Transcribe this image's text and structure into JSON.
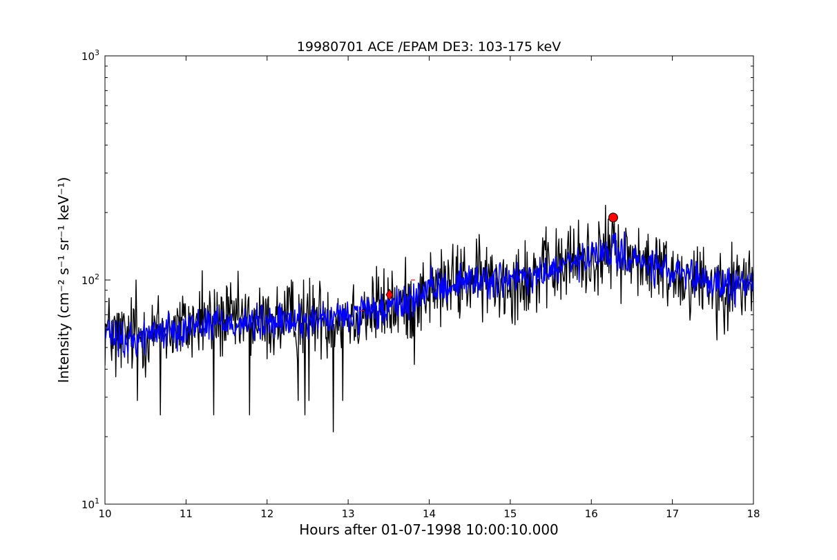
{
  "chart_data": {
    "type": "line",
    "title": "19980701 ACE /EPAM DE3: 103-175 keV",
    "xlabel": "Hours after 01-07-1998 10:00:10.000",
    "ylabel": "Intensity (cm⁻² s⁻¹ sr⁻¹ keV⁻¹)",
    "xlim": [
      10,
      18
    ],
    "ylim": [
      10,
      1000
    ],
    "yscale": "log",
    "grid": false,
    "x_ticks": [
      "10",
      "11",
      "12",
      "13",
      "14",
      "15",
      "16",
      "17",
      "18"
    ],
    "y_ticks": [
      {
        "value": 10,
        "base": "10",
        "exp": "1"
      },
      {
        "value": 100,
        "base": "10",
        "exp": "2"
      },
      {
        "value": 1000,
        "base": "10",
        "exp": "3"
      }
    ],
    "series": [
      {
        "color": "#000000",
        "description": "raw intensity",
        "x": [
          10.0,
          10.25,
          10.5,
          10.75,
          11.0,
          11.25,
          11.5,
          11.75,
          12.0,
          12.25,
          12.5,
          12.75,
          13.0,
          13.25,
          13.5,
          13.75,
          14.0,
          14.25,
          14.5,
          14.75,
          15.0,
          15.25,
          15.5,
          15.75,
          16.0,
          16.25,
          16.5,
          16.75,
          17.0,
          17.25,
          17.5,
          17.75,
          18.0
        ],
        "values": [
          60,
          55,
          58,
          60,
          62,
          65,
          66,
          65,
          64,
          66,
          68,
          68,
          70,
          72,
          75,
          80,
          90,
          95,
          100,
          100,
          100,
          102,
          110,
          118,
          125,
          135,
          125,
          115,
          108,
          100,
          98,
          95,
          97
        ],
        "noise": 0.2,
        "min_values": [
          {
            "x": 10.13,
            "y": 37
          },
          {
            "x": 10.4,
            "y": 29
          },
          {
            "x": 10.68,
            "y": 25
          },
          {
            "x": 11.34,
            "y": 25
          },
          {
            "x": 11.78,
            "y": 25
          },
          {
            "x": 12.38,
            "y": 29
          },
          {
            "x": 12.47,
            "y": 25
          },
          {
            "x": 12.52,
            "y": 29
          },
          {
            "x": 12.82,
            "y": 21
          },
          {
            "x": 12.93,
            "y": 29
          },
          {
            "x": 13.82,
            "y": 42
          },
          {
            "x": 17.55,
            "y": 54
          }
        ],
        "max_values": [
          {
            "x": 10.38,
            "y": 100
          },
          {
            "x": 11.2,
            "y": 110
          },
          {
            "x": 12.3,
            "y": 100
          },
          {
            "x": 12.45,
            "y": 100
          },
          {
            "x": 13.35,
            "y": 115
          },
          {
            "x": 14.43,
            "y": 140
          },
          {
            "x": 15.18,
            "y": 150
          },
          {
            "x": 15.72,
            "y": 165
          },
          {
            "x": 15.84,
            "y": 185
          },
          {
            "x": 16.26,
            "y": 185
          },
          {
            "x": 16.58,
            "y": 170
          },
          {
            "x": 17.38,
            "y": 140
          },
          {
            "x": 17.95,
            "y": 135
          }
        ]
      },
      {
        "color": "#0000ff",
        "description": "smoothed intensity",
        "x": [
          10.0,
          10.25,
          10.5,
          10.75,
          11.0,
          11.25,
          11.5,
          11.75,
          12.0,
          12.25,
          12.5,
          12.75,
          13.0,
          13.25,
          13.5,
          13.75,
          14.0,
          14.25,
          14.5,
          14.75,
          15.0,
          15.25,
          15.5,
          15.75,
          16.0,
          16.25,
          16.5,
          16.75,
          17.0,
          17.25,
          17.5,
          17.75,
          18.0
        ],
        "values": [
          58,
          52,
          57,
          60,
          62,
          64,
          65,
          64,
          64,
          65,
          66,
          67,
          69,
          71,
          74,
          80,
          90,
          95,
          100,
          100,
          100,
          102,
          110,
          118,
          124,
          135,
          124,
          114,
          107,
          100,
          97,
          94,
          96
        ],
        "noise": 0.09
      }
    ],
    "markers": [
      {
        "x": 16.27,
        "y": 190,
        "shape": "circle",
        "color": "#ff0000"
      },
      {
        "x": 13.51,
        "y": 86,
        "shape": "diamond",
        "color": "#ff0000"
      },
      {
        "x": 13.17,
        "y": 73,
        "shape": "tick",
        "color": "#ff0000"
      },
      {
        "x": 13.8,
        "y": 100,
        "shape": "tick",
        "color": "#ff0000"
      }
    ]
  }
}
